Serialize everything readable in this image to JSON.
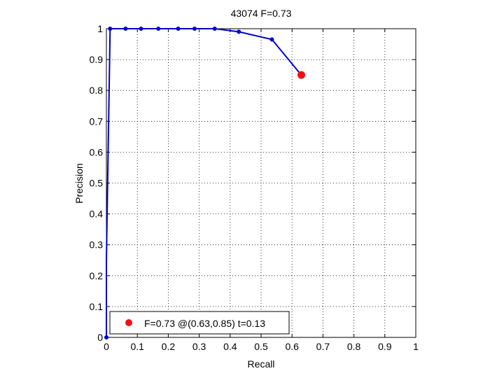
{
  "chart_data": {
    "type": "line",
    "title": "43074 F=0.73",
    "xlabel": "Recall",
    "ylabel": "Precision",
    "xlim": [
      0,
      1
    ],
    "ylim": [
      0,
      1
    ],
    "x_ticks": [
      "0",
      "0.1",
      "0.2",
      "0.3",
      "0.4",
      "0.5",
      "0.6",
      "0.7",
      "0.8",
      "0.9",
      "1"
    ],
    "y_ticks": [
      "0",
      "0.1",
      "0.2",
      "0.3",
      "0.4",
      "0.5",
      "0.6",
      "0.7",
      "0.8",
      "0.9",
      "1"
    ],
    "grid": true,
    "grid_style": "dotted",
    "legend_position": "bottom-left",
    "series": [
      {
        "color": "#0000cc",
        "points": [
          [
            0.0,
            0.0
          ],
          [
            0.0,
            0.25
          ],
          [
            0.012,
            1.0
          ],
          [
            0.062,
            1.0
          ],
          [
            0.112,
            1.0
          ],
          [
            0.168,
            1.0
          ],
          [
            0.232,
            1.0
          ],
          [
            0.285,
            1.0
          ],
          [
            0.35,
            1.0
          ],
          [
            0.428,
            0.99
          ],
          [
            0.535,
            0.965
          ],
          [
            0.63,
            0.85
          ]
        ],
        "marked_points": [
          [
            0.0,
            0.0
          ],
          [
            0.012,
            1.0
          ],
          [
            0.062,
            1.0
          ],
          [
            0.112,
            1.0
          ],
          [
            0.168,
            1.0
          ],
          [
            0.232,
            1.0
          ],
          [
            0.285,
            1.0
          ],
          [
            0.35,
            1.0
          ],
          [
            0.428,
            0.99
          ],
          [
            0.535,
            0.965
          ]
        ]
      }
    ],
    "highlight": {
      "recall": 0.63,
      "precision": 0.85,
      "color": "#ee1111",
      "legend_text": "F=0.73 @(0.63,0.85) t=0.13"
    }
  }
}
